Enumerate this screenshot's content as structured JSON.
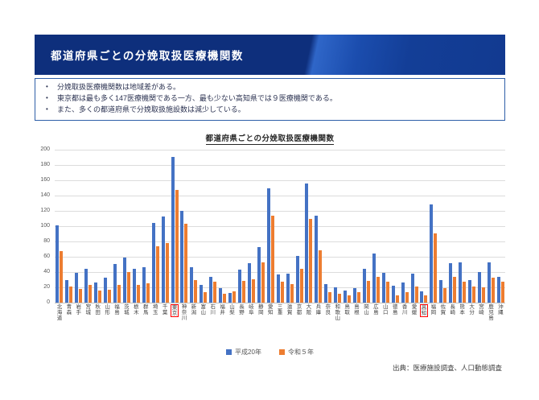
{
  "header": {
    "title": "都道府県ごとの分娩取扱医療機関数",
    "bg_color": "#0e2f7c",
    "accent_color": "#2f66c8"
  },
  "summary": {
    "border_color": "#2e5fa8",
    "bullets": [
      "分娩取扱医療機関数は地域差がある。",
      "東京都は最も多く147医療機関である一方、最も少ない高知県では９医療機関である。",
      "また、多くの都道府県で分娩取扱施設数は減少している。"
    ]
  },
  "chart_data": {
    "type": "bar",
    "title": "都道府県ごとの分娩取扱医療機関数",
    "categories": [
      "北海道",
      "青森",
      "岩手",
      "宮城",
      "秋田",
      "山形",
      "福島",
      "茨城",
      "栃木",
      "群馬",
      "埼玉",
      "千葉",
      "東京",
      "神奈川",
      "新潟",
      "富山",
      "石川",
      "福井",
      "山梨",
      "長野",
      "岐阜",
      "静岡",
      "愛知",
      "三重",
      "滋賀",
      "京都",
      "大阪",
      "兵庫",
      "奈良",
      "和歌山",
      "鳥取",
      "島根",
      "岡山",
      "広島",
      "山口",
      "徳島",
      "香川",
      "愛媛",
      "高知",
      "福岡",
      "佐賀",
      "長崎",
      "熊本",
      "大分",
      "宮崎",
      "鹿児島",
      "沖縄"
    ],
    "series": [
      {
        "name": "平成20年",
        "color": "#4472C4",
        "values": [
          101,
          29,
          39,
          44,
          26,
          32,
          50,
          59,
          44,
          46,
          104,
          112,
          190,
          120,
          46,
          23,
          33,
          19,
          12,
          43,
          51,
          72,
          149,
          37,
          38,
          61,
          156,
          114,
          24,
          20,
          16,
          19,
          44,
          64,
          39,
          22,
          26,
          38,
          15,
          128,
          29,
          51,
          52,
          29,
          40,
          53,
          34
        ]
      },
      {
        "name": "令和５年",
        "color": "#ED7D31",
        "values": [
          67,
          21,
          18,
          23,
          16,
          17,
          23,
          40,
          23,
          25,
          73,
          78,
          147,
          103,
          29,
          14,
          27,
          11,
          15,
          28,
          30,
          53,
          114,
          27,
          24,
          44,
          109,
          68,
          14,
          11,
          9,
          13,
          28,
          34,
          27,
          9,
          13,
          21,
          9,
          90,
          19,
          33,
          27,
          21,
          20,
          32,
          27
        ]
      }
    ],
    "ylim": [
      0,
      200
    ],
    "ytick_step": 20,
    "grid": true,
    "legend_position": "bottom",
    "highlighted_categories": [
      "東京",
      "高知"
    ],
    "highlight_color": "#FF0000"
  },
  "source": {
    "text": "出典：医療施設調査、人口動態調査"
  }
}
